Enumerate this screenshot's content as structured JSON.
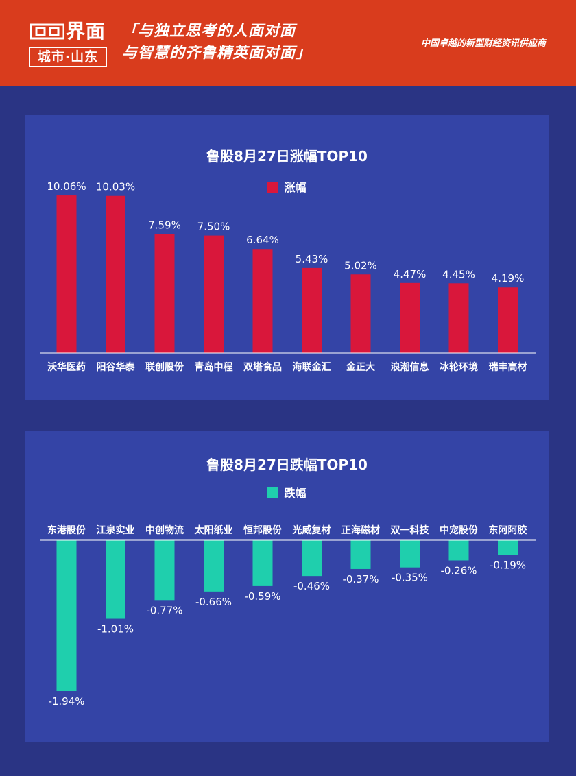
{
  "header": {
    "logo_text": "界面",
    "logo_sub": "城市·山东",
    "slogan_line1": "「与独立思考的人面对面",
    "slogan_line2": "与智慧的齐鲁精英面对面」",
    "tagline": "中国卓越的新型财经资讯供应商",
    "background_color": "#d93c1d"
  },
  "colors": {
    "page_background": "#2a3484",
    "panel_background": "#3444a6",
    "rise_bar": "#d9173b",
    "fall_bar": "#1fcfad"
  },
  "chart_data": [
    {
      "type": "bar",
      "title": "鲁股8月27日涨幅TOP10",
      "legend": "涨幅",
      "categories": [
        "沃华医药",
        "阳谷华泰",
        "联创股份",
        "青岛中程",
        "双塔食品",
        "海联金汇",
        "金正大",
        "浪潮信息",
        "冰轮环境",
        "瑞丰高材"
      ],
      "values": [
        10.06,
        10.03,
        7.59,
        7.5,
        6.64,
        5.43,
        5.02,
        4.47,
        4.45,
        4.19
      ],
      "value_labels": [
        "10.06%",
        "10.03%",
        "7.59%",
        "7.50%",
        "6.64%",
        "5.43%",
        "5.02%",
        "4.47%",
        "4.45%",
        "4.19%"
      ],
      "xlabel": "",
      "ylabel": "",
      "ylim": [
        0,
        10.5
      ],
      "grid": false,
      "legend_position": "top-center"
    },
    {
      "type": "bar",
      "title": "鲁股8月27日跌幅TOP10",
      "legend": "跌幅",
      "categories": [
        "东港股份",
        "江泉实业",
        "中创物流",
        "太阳纸业",
        "恒邦股份",
        "光威复材",
        "正海磁材",
        "双一科技",
        "中宠股份",
        "东阿阿胶"
      ],
      "values": [
        -1.94,
        -1.01,
        -0.77,
        -0.66,
        -0.59,
        -0.46,
        -0.37,
        -0.35,
        -0.26,
        -0.19
      ],
      "value_labels": [
        "-1.94%",
        "-1.01%",
        "-0.77%",
        "-0.66%",
        "-0.59%",
        "-0.46%",
        "-0.37%",
        "-0.35%",
        "-0.26%",
        "-0.19%"
      ],
      "xlabel": "",
      "ylabel": "",
      "ylim": [
        -2.0,
        0
      ],
      "grid": false,
      "legend_position": "top-center"
    }
  ]
}
